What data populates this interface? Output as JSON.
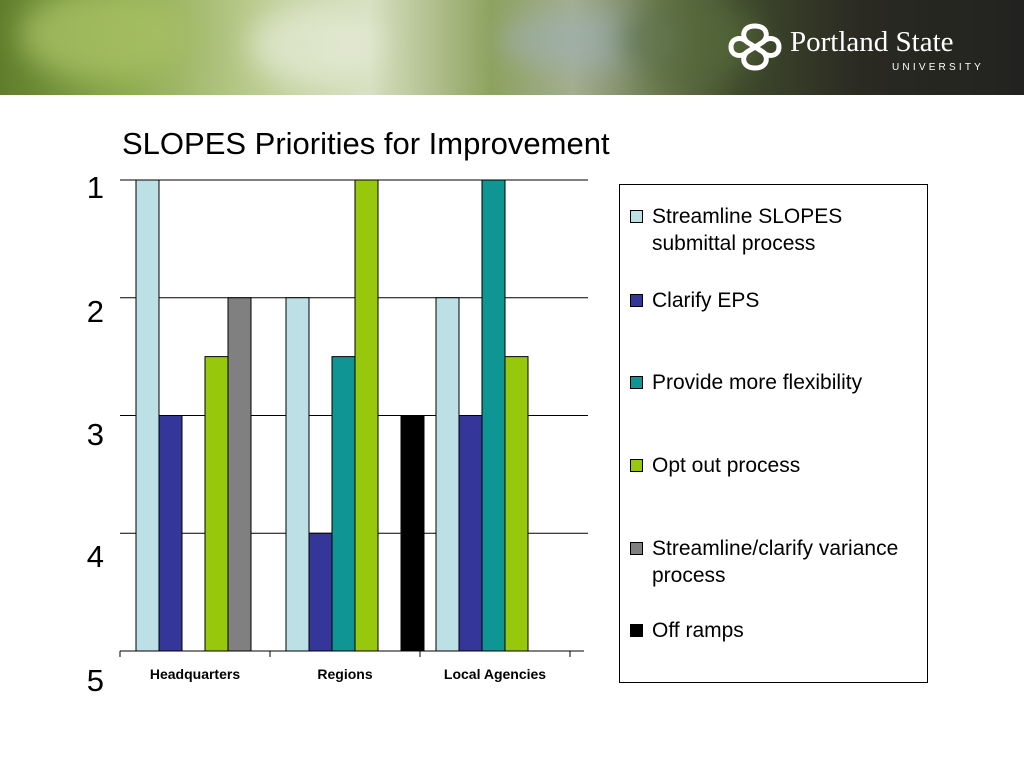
{
  "header": {
    "logo_name": "Portland State",
    "logo_sub": "UNIVERSITY"
  },
  "colors": {
    "streamline_slopes": "#BDE0E6",
    "clarify_eps": "#343799",
    "provide_flexibility": "#109595",
    "opt_out": "#97C80B",
    "streamline_variance": "#808080",
    "off_ramps": "#000000"
  },
  "chart_data": {
    "type": "bar",
    "title": "SLOPES Priorities for Improvement",
    "xlabel": "",
    "ylabel": "",
    "y_axis": "inverted rank scale, 1 at top, 5 at baseline",
    "ylim": [
      5,
      1
    ],
    "y_ticks": [
      "1",
      "2",
      "3",
      "4",
      "5"
    ],
    "categories": [
      "Headquarters",
      "Regions",
      "Local Agencies"
    ],
    "grid": true,
    "legend_position": "right",
    "series": [
      {
        "name": "Streamline SLOPES submittal process",
        "color_key": "streamline_slopes",
        "values": [
          1,
          2,
          2
        ]
      },
      {
        "name": "Clarify EPS",
        "color_key": "clarify_eps",
        "values": [
          3,
          4,
          3
        ]
      },
      {
        "name": "Provide more flexibility",
        "color_key": "provide_flexibility",
        "values": [
          null,
          2.5,
          1
        ]
      },
      {
        "name": "Opt out process",
        "color_key": "opt_out",
        "values": [
          2.5,
          1,
          2.5
        ]
      },
      {
        "name": "Streamline/clarify variance process",
        "color_key": "streamline_variance",
        "values": [
          2,
          null,
          null
        ]
      },
      {
        "name": "Off ramps",
        "color_key": "off_ramps",
        "values": [
          null,
          3,
          null
        ]
      }
    ]
  }
}
